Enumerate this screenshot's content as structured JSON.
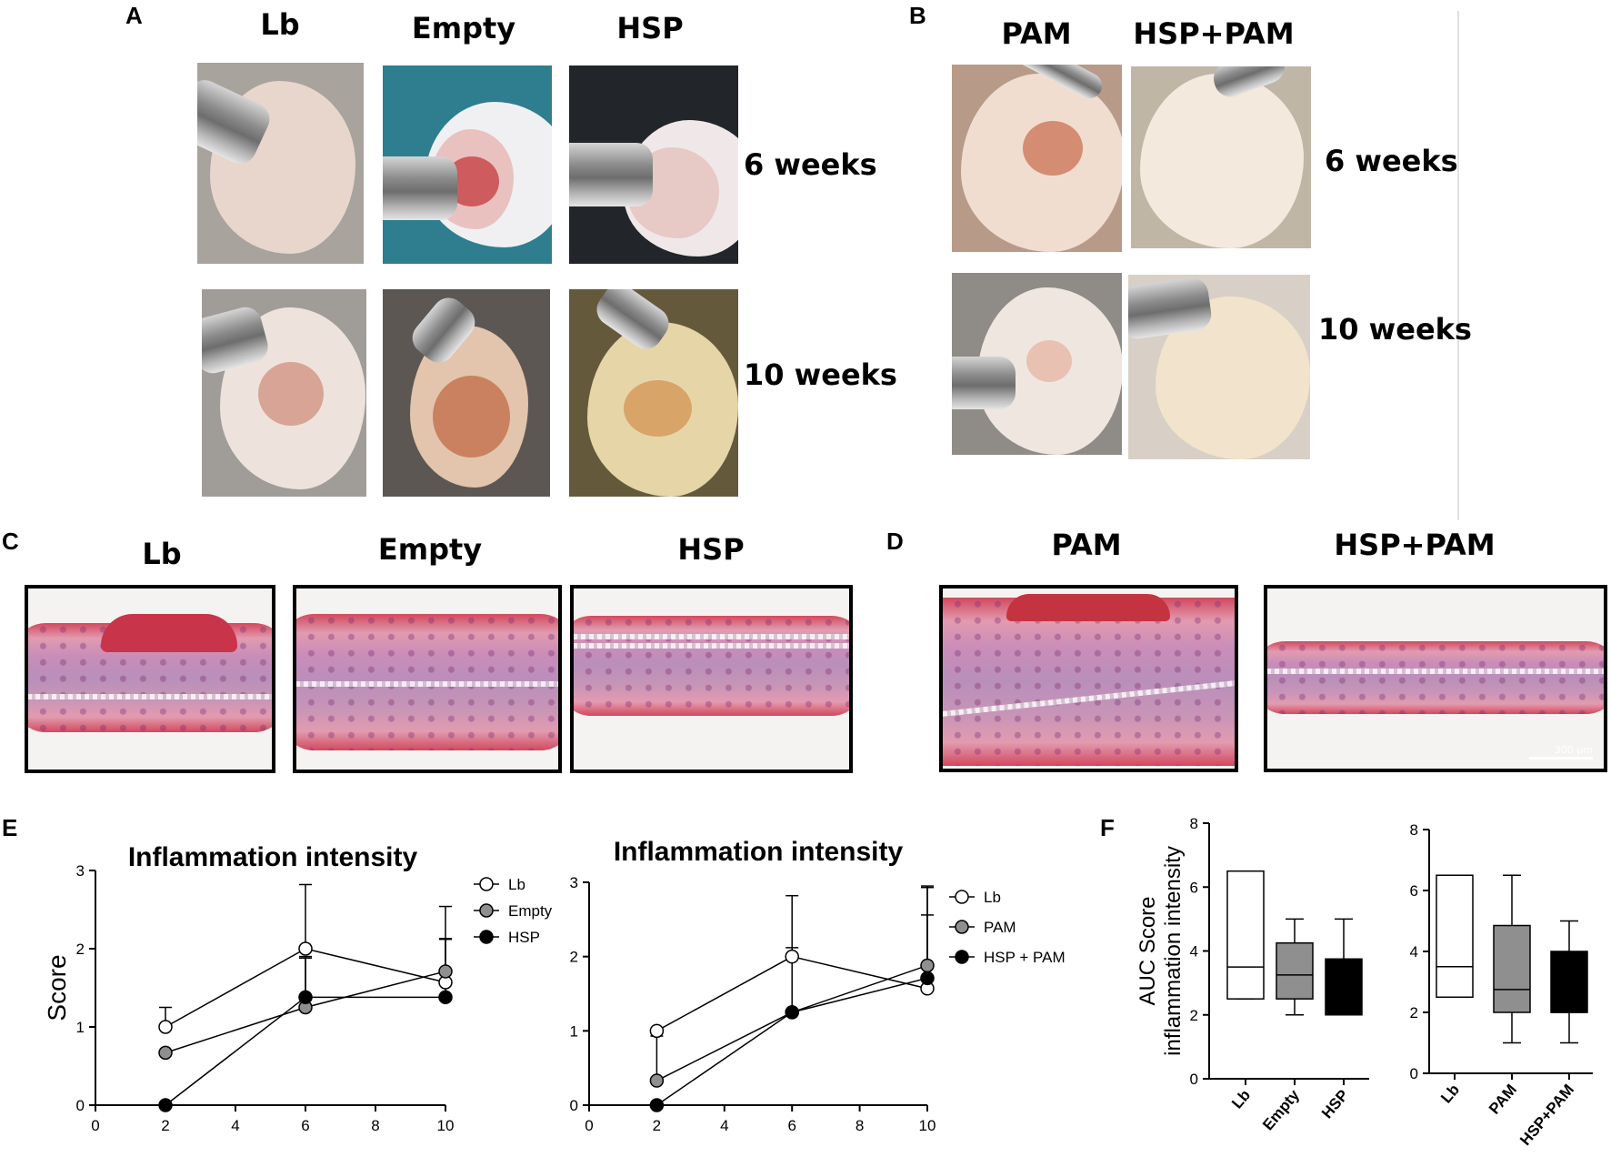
{
  "panels": {
    "A": "A",
    "B": "B",
    "C": "C",
    "D": "D",
    "E": "E",
    "F": "F"
  },
  "panel_A": {
    "columns": [
      "Lb",
      "Empty",
      "HSP"
    ],
    "rows": [
      "6 weeks",
      "10 weeks"
    ]
  },
  "panel_B": {
    "columns": [
      "PAM",
      "HSP+PAM"
    ],
    "rows": [
      "6 weeks",
      "10 weeks"
    ]
  },
  "panel_C": {
    "columns": [
      "Lb",
      "Empty",
      "HSP"
    ]
  },
  "panel_D": {
    "columns": [
      "PAM",
      "HSP+PAM"
    ],
    "scale_bar": "300 μm"
  },
  "chart_data": [
    {
      "id": "E-left",
      "type": "line",
      "title": "Inflammation intensity",
      "xlabel": "",
      "ylabel": "Score",
      "xlim": [
        0,
        10
      ],
      "ylim": [
        0,
        3
      ],
      "xticks": [
        "0",
        "2",
        "4",
        "6",
        "8",
        "10"
      ],
      "yticks": [
        "0",
        "1",
        "2",
        "3"
      ],
      "x": [
        2,
        6,
        10
      ],
      "series": [
        {
          "name": "Lb",
          "marker": "open",
          "values": [
            1.0,
            2.0,
            1.57
          ],
          "err": [
            0.25,
            0.82,
            0.55
          ]
        },
        {
          "name": "Empty",
          "marker": "gray",
          "values": [
            0.67,
            1.25,
            1.71
          ],
          "err": [
            0,
            0.65,
            0.83
          ]
        },
        {
          "name": "HSP",
          "marker": "filled",
          "values": [
            0,
            1.38,
            1.38
          ],
          "err": [
            0,
            0.5,
            0.75
          ]
        }
      ],
      "legend_position": "right"
    },
    {
      "id": "E-right",
      "type": "line",
      "title": "Inflammation intensity",
      "xlabel": "",
      "ylabel": "",
      "xlim": [
        0,
        10
      ],
      "ylim": [
        0,
        3
      ],
      "xticks": [
        "0",
        "2",
        "4",
        "6",
        "8",
        "10"
      ],
      "yticks": [
        "0",
        "1",
        "2",
        "3"
      ],
      "x": [
        2,
        6,
        10
      ],
      "series": [
        {
          "name": "Lb",
          "marker": "open",
          "values": [
            1.0,
            2.0,
            1.57
          ],
          "err": [
            0,
            0.82,
            1.38
          ]
        },
        {
          "name": "PAM",
          "marker": "gray",
          "values": [
            0.33,
            1.25,
            1.88
          ],
          "err": [
            0.6,
            0.87,
            1.05
          ]
        },
        {
          "name": "HSP + PAM",
          "marker": "filled",
          "values": [
            0,
            1.25,
            1.71
          ],
          "err": [
            0,
            0,
            0.85
          ]
        }
      ],
      "legend_position": "right"
    },
    {
      "id": "F-left",
      "type": "box",
      "ylabel": "AUC Score inflammation intensity",
      "ylim": [
        0,
        8
      ],
      "yticks": [
        "0",
        "2",
        "4",
        "6",
        "8"
      ],
      "categories": [
        "Lb",
        "Empty",
        "HSP"
      ],
      "boxes": [
        {
          "min": 2.5,
          "q1": 2.5,
          "median": 3.5,
          "q3": 6.5,
          "max": 6.5,
          "fill": "white"
        },
        {
          "min": 2.0,
          "q1": 2.5,
          "median": 3.25,
          "q3": 4.25,
          "max": 5.0,
          "fill": "gray"
        },
        {
          "min": 2.0,
          "q1": 2.0,
          "median": 2.0,
          "q3": 3.75,
          "max": 5.0,
          "fill": "black"
        }
      ]
    },
    {
      "id": "F-right",
      "type": "box",
      "ylabel": "",
      "ylim": [
        0,
        8
      ],
      "yticks": [
        "0",
        "2",
        "4",
        "6",
        "8"
      ],
      "categories": [
        "Lb",
        "PAM",
        "HSP+PAM"
      ],
      "boxes": [
        {
          "min": 2.5,
          "q1": 2.5,
          "median": 3.5,
          "q3": 6.5,
          "max": 6.5,
          "fill": "white"
        },
        {
          "min": 1.0,
          "q1": 2.0,
          "median": 2.75,
          "q3": 4.85,
          "max": 6.5,
          "fill": "gray"
        },
        {
          "min": 1.0,
          "q1": 2.0,
          "median": 2.0,
          "q3": 4.0,
          "max": 5.0,
          "fill": "black"
        }
      ]
    }
  ]
}
